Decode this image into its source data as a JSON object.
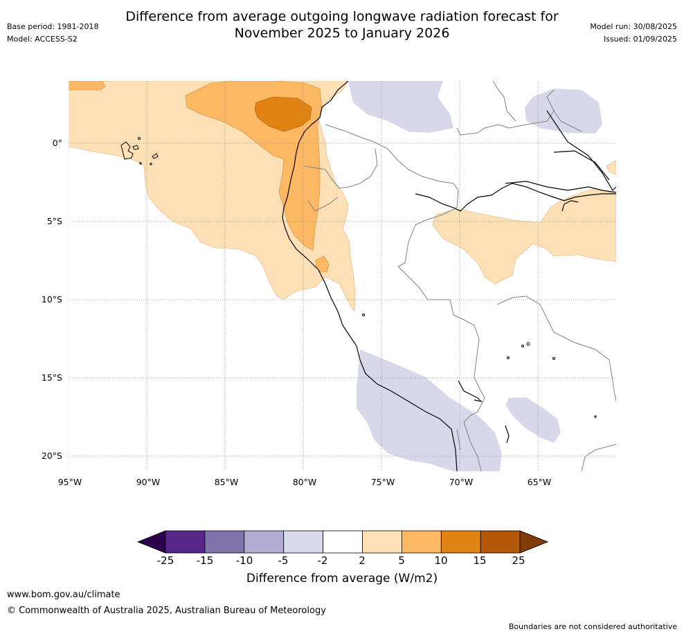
{
  "header": {
    "title_line1": "Difference from average outgoing longwave radiation forecast for",
    "title_line2": "November 2025 to January 2026",
    "base_period": "Base period: 1981-2018",
    "model": "Model: ACCESS-S2",
    "model_run": "Model run: 30/08/2025",
    "issued": "Issued: 01/09/2025"
  },
  "map": {
    "lat_labels": [
      "0°",
      "5°S",
      "10°S",
      "15°S",
      "20°S"
    ],
    "lon_labels": [
      "95°W",
      "90°W",
      "85°W",
      "80°W",
      "75°W",
      "70°W",
      "65°W"
    ],
    "colors": {
      "ocean_base": "#fde0b6",
      "orange_10": "#fdb863",
      "orange_15": "#e08214",
      "purple_light": "#d8d8ea",
      "coast": "#000000",
      "border": "#808080",
      "grid": "#888888"
    }
  },
  "colorbar": {
    "tick_labels": [
      "-25",
      "-15",
      "-10",
      "-5",
      "-2",
      "2",
      "5",
      "10",
      "15",
      "25"
    ],
    "colors": [
      "#2d004b",
      "#542788",
      "#8073ac",
      "#b2abd2",
      "#d8daeb",
      "#ffffff",
      "#fee0b6",
      "#fdb863",
      "#e08214",
      "#b35806",
      "#7f3b08"
    ],
    "label": "Difference from average (W/m2)"
  },
  "footer": {
    "website": "www.bom.gov.au/climate",
    "copyright": "© Commonwealth of Australia 2025, Australian Bureau of Meteorology",
    "disclaimer": "Boundaries are not considered authoritative"
  }
}
